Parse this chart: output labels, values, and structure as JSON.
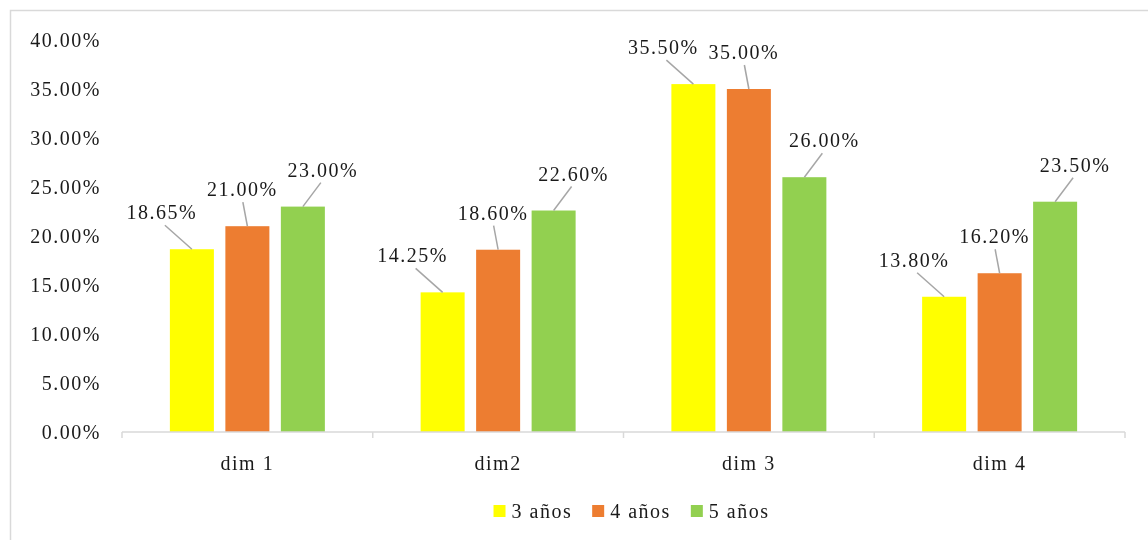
{
  "chart_data": {
    "type": "bar",
    "categories": [
      "dim 1",
      "dim2",
      "dim 3",
      "dim 4"
    ],
    "series": [
      {
        "name": "3 años",
        "color": "#ffff00",
        "values": [
          18.65,
          14.25,
          35.5,
          13.8
        ],
        "value_labels": [
          "18.65%",
          "14.25%",
          "35.50%",
          "13.80%"
        ]
      },
      {
        "name": "4 años",
        "color": "#ed7d31",
        "values": [
          21.0,
          18.6,
          35.0,
          16.2
        ],
        "value_labels": [
          "21.00%",
          "18.60%",
          "35.00%",
          "16.20%"
        ]
      },
      {
        "name": "5 años",
        "color": "#92d050",
        "values": [
          23.0,
          22.6,
          26.0,
          23.5
        ],
        "value_labels": [
          "23.00%",
          "22.60%",
          "26.00%",
          "23.50%"
        ]
      }
    ],
    "ylim": [
      0,
      40
    ],
    "yticks": [
      {
        "value": 0,
        "label": "0.00%"
      },
      {
        "value": 5,
        "label": "5.00%"
      },
      {
        "value": 10,
        "label": "10.00%"
      },
      {
        "value": 15,
        "label": "15.00%"
      },
      {
        "value": 20,
        "label": "20.00%"
      },
      {
        "value": 25,
        "label": "25.00%"
      },
      {
        "value": 30,
        "label": "30.00%"
      },
      {
        "value": 35,
        "label": "35.00%"
      },
      {
        "value": 40,
        "label": "40.00%"
      }
    ],
    "legend": "bottom"
  }
}
